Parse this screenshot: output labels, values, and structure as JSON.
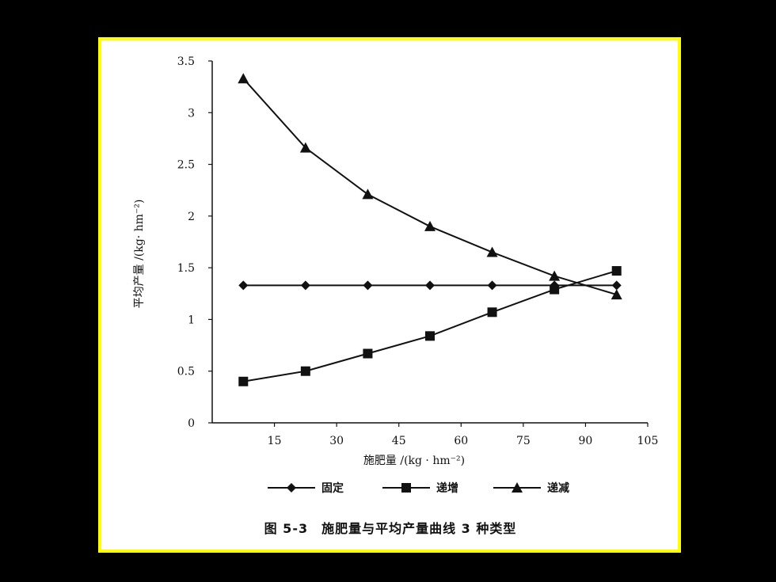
{
  "colors": {
    "frame": "#ffff00",
    "background": "#000000",
    "ink": "#111111"
  },
  "caption": "图 5-3　施肥量与平均产量曲线 3 种类型",
  "chart_data": {
    "type": "line",
    "xlabel": "施肥量 /(kg · hm⁻²)",
    "ylabel": "平均产量 /(kg· hm⁻²)",
    "xlim": [
      0,
      105
    ],
    "ylim": [
      0,
      3.5
    ],
    "x_ticks": [
      "15",
      "30",
      "45",
      "60",
      "75",
      "90",
      "105"
    ],
    "y_ticks": [
      "0",
      "0.5",
      "1",
      "1.5",
      "2",
      "2.5",
      "3",
      "3.5"
    ],
    "x": [
      7.5,
      22.5,
      37.5,
      52.5,
      67.5,
      82.5,
      97.5
    ],
    "legend_position": "bottom",
    "series": [
      {
        "name": "固定",
        "marker": "diamond",
        "values": [
          1.33,
          1.33,
          1.33,
          1.33,
          1.33,
          1.33,
          1.33
        ]
      },
      {
        "name": "递增",
        "marker": "square",
        "values": [
          0.4,
          0.5,
          0.67,
          0.84,
          1.07,
          1.29,
          1.47
        ]
      },
      {
        "name": "递减",
        "marker": "triangle",
        "values": [
          3.33,
          2.66,
          2.21,
          1.9,
          1.65,
          1.42,
          1.24
        ]
      }
    ]
  }
}
